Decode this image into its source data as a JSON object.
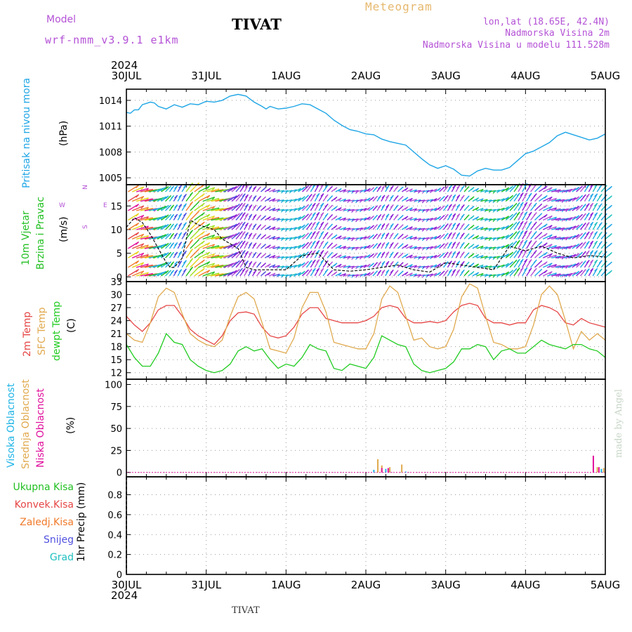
{
  "header": {
    "model_label": "Model",
    "model_name": "wrf-nmm_v3.9.1 e1km",
    "station": "TIVAT",
    "product": "Meteogram",
    "lonlat": "lon,lat (18.65E, 42.4N)",
    "elevation": "Nadmorska Visina 2m",
    "model_elevation": "Nadmorska Visina u modelu 111.528m",
    "footer_station": "TIVAT",
    "credit": "made by Angel"
  },
  "colors": {
    "model": "#b452d6",
    "title": "#000000",
    "product": "#e6b86e",
    "info": "#b452d6",
    "pressure": "#1fa6e6",
    "wind_label": "#22c022",
    "temp2m": "#e64646",
    "sfc": "#e0a94e",
    "dewpt": "#22cc22",
    "cloud_high": "#1fb4e6",
    "cloud_mid": "#e0a94e",
    "cloud_low": "#e0119c",
    "total_precip": "#22c022",
    "conv_precip": "#e64646",
    "frozen_precip": "#f07a2a",
    "snow": "#5050e0",
    "hail": "#22c0c0",
    "credit": "#c8d6c8"
  },
  "axis": {
    "year_top": "2024",
    "year_bottom": "2024",
    "date_ticks": [
      "30JUL",
      "31JUL",
      "1AUG",
      "2AUG",
      "3AUG",
      "4AUG",
      "5AUG"
    ]
  },
  "chart_data": [
    {
      "type": "line",
      "panel": "pressure",
      "ylabel": [
        "Pritisak na nivou mora",
        "(hPa)"
      ],
      "yticks": [
        1005,
        1008,
        1011,
        1014
      ],
      "ylim": [
        1004.2,
        1015.3
      ],
      "x_days": [
        0.0,
        0.05,
        0.1,
        0.15,
        0.2,
        0.3,
        0.35,
        0.4,
        0.5,
        0.6,
        0.7,
        0.8,
        0.9,
        1.0,
        1.1,
        1.2,
        1.3,
        1.4,
        1.5,
        1.6,
        1.7,
        1.75,
        1.8,
        1.9,
        2.0,
        2.1,
        2.2,
        2.3,
        2.4,
        2.5,
        2.6,
        2.7,
        2.8,
        2.9,
        3.0,
        3.1,
        3.2,
        3.3,
        3.4,
        3.5,
        3.6,
        3.7,
        3.8,
        3.9,
        4.0,
        4.1,
        4.2,
        4.3,
        4.4,
        4.5,
        4.6,
        4.7,
        4.8,
        4.9,
        5.0,
        5.1,
        5.2,
        5.3,
        5.4,
        5.5,
        5.6,
        5.7,
        5.8,
        5.9,
        6.0
      ],
      "y_hpa": [
        1012.6,
        1012.5,
        1012.9,
        1012.9,
        1013.5,
        1013.8,
        1013.7,
        1013.3,
        1013.0,
        1013.5,
        1013.2,
        1013.6,
        1013.5,
        1013.9,
        1013.8,
        1014.0,
        1014.5,
        1014.7,
        1014.5,
        1013.8,
        1013.3,
        1013.0,
        1013.3,
        1013.0,
        1013.1,
        1013.3,
        1013.6,
        1013.5,
        1013.0,
        1012.5,
        1011.7,
        1011.1,
        1010.6,
        1010.4,
        1010.1,
        1010.0,
        1009.5,
        1009.2,
        1009.0,
        1008.8,
        1008.0,
        1007.2,
        1006.5,
        1006.1,
        1006.4,
        1006.0,
        1005.3,
        1005.2,
        1005.8,
        1006.1,
        1005.9,
        1005.9,
        1006.2,
        1007.0,
        1007.8,
        1008.1,
        1008.6,
        1009.1,
        1009.9,
        1010.3,
        1010.0,
        1009.7,
        1009.4,
        1009.6,
        1010.1
      ]
    },
    {
      "type": "line",
      "panel": "wind",
      "ylabel": [
        "10m Vjetar",
        "Brzina i Pravac",
        "(m/s)"
      ],
      "compass": [
        "N",
        "E",
        "S",
        "W"
      ],
      "yticks": [
        0,
        5,
        10,
        15
      ],
      "ylim": [
        -1,
        19.5
      ],
      "x_days": [
        0.0,
        0.1,
        0.2,
        0.3,
        0.4,
        0.5,
        0.55,
        0.6,
        0.7,
        0.8,
        0.9,
        1.0,
        1.1,
        1.2,
        1.3,
        1.4,
        1.5,
        1.6,
        1.8,
        2.0,
        2.2,
        2.4,
        2.6,
        2.8,
        3.0,
        3.2,
        3.4,
        3.6,
        3.8,
        4.0,
        4.2,
        4.4,
        4.6,
        4.8,
        5.0,
        5.2,
        5.4,
        5.6,
        5.8,
        6.0
      ],
      "y_ms": [
        10.5,
        12.5,
        11.5,
        9.0,
        6.0,
        3.0,
        2.0,
        2.0,
        4.0,
        12.0,
        11.0,
        10.5,
        10.0,
        8.0,
        7.0,
        6.0,
        2.0,
        1.5,
        1.5,
        1.5,
        4.5,
        5.0,
        1.5,
        1.2,
        1.5,
        2.0,
        2.5,
        1.5,
        1.0,
        3.0,
        2.5,
        2.0,
        1.5,
        6.5,
        5.5,
        6.5,
        5.0,
        4.0,
        4.5,
        4.2
      ]
    },
    {
      "type": "line",
      "panel": "temperature",
      "ylabel": [
        "2m Temp",
        "SFC Temp",
        "dewpt Temp",
        "(C)"
      ],
      "yticks": [
        12,
        15,
        18,
        21,
        24,
        27,
        30,
        33
      ],
      "ylim": [
        10.5,
        33
      ],
      "x_days": [
        0.0,
        0.1,
        0.2,
        0.3,
        0.4,
        0.5,
        0.6,
        0.7,
        0.8,
        0.9,
        1.0,
        1.1,
        1.2,
        1.3,
        1.4,
        1.5,
        1.6,
        1.7,
        1.8,
        1.9,
        2.0,
        2.1,
        2.2,
        2.3,
        2.4,
        2.5,
        2.6,
        2.7,
        2.8,
        2.9,
        3.0,
        3.1,
        3.2,
        3.3,
        3.4,
        3.5,
        3.6,
        3.7,
        3.8,
        3.9,
        4.0,
        4.1,
        4.2,
        4.3,
        4.4,
        4.5,
        4.6,
        4.7,
        4.8,
        4.9,
        5.0,
        5.1,
        5.2,
        5.3,
        5.4,
        5.5,
        5.6,
        5.7,
        5.8,
        5.9,
        6.0
      ],
      "series": [
        {
          "name": "2m Temp",
          "values": [
            25.0,
            23.0,
            21.5,
            23.5,
            26.5,
            27.5,
            27.5,
            25.0,
            22.0,
            20.5,
            19.5,
            18.5,
            20.5,
            24.0,
            25.8,
            26.0,
            25.5,
            22.5,
            20.5,
            20.0,
            20.5,
            22.5,
            25.5,
            27.0,
            27.0,
            24.5,
            24.0,
            23.5,
            23.5,
            23.5,
            24.0,
            25.0,
            27.0,
            27.5,
            27.0,
            24.5,
            23.5,
            23.5,
            23.8,
            23.5,
            24.0,
            26.0,
            27.5,
            28.0,
            27.5,
            24.5,
            23.5,
            23.5,
            23.0,
            23.5,
            23.5,
            26.5,
            27.5,
            27.0,
            26.0,
            23.5,
            23.0,
            24.5,
            23.5,
            23.0,
            22.5
          ]
        },
        {
          "name": "SFC Temp",
          "values": [
            21.0,
            19.5,
            19.0,
            23.5,
            29.5,
            31.5,
            30.5,
            25.5,
            21.0,
            19.5,
            18.5,
            18.0,
            19.5,
            25.0,
            29.5,
            30.5,
            29.0,
            23.5,
            17.5,
            17.0,
            16.5,
            20.0,
            27.0,
            30.5,
            30.5,
            26.0,
            19.0,
            18.5,
            18.0,
            17.5,
            17.5,
            21.0,
            29.0,
            32.0,
            30.5,
            25.0,
            19.5,
            20.0,
            18.0,
            17.5,
            18.0,
            22.0,
            29.5,
            32.5,
            31.5,
            25.0,
            19.0,
            18.5,
            17.5,
            17.5,
            18.0,
            23.0,
            30.0,
            32.0,
            30.0,
            24.0,
            17.5,
            21.5,
            19.5,
            21.0,
            19.5
          ]
        },
        {
          "name": "dewpt Temp",
          "values": [
            18.5,
            15.5,
            13.5,
            13.5,
            16.5,
            21.0,
            19.0,
            18.5,
            15.0,
            13.5,
            12.5,
            12.0,
            12.5,
            14.0,
            17.0,
            18.0,
            17.0,
            17.5,
            15.0,
            13.0,
            14.0,
            13.5,
            15.5,
            18.5,
            17.5,
            17.0,
            13.0,
            12.5,
            14.0,
            13.5,
            13.0,
            15.5,
            20.5,
            19.5,
            18.5,
            18.0,
            14.0,
            12.5,
            12.0,
            12.5,
            13.0,
            14.5,
            17.5,
            17.5,
            18.5,
            18.0,
            15.0,
            17.0,
            17.5,
            16.5,
            16.5,
            18.0,
            19.5,
            18.5,
            18.0,
            17.5,
            18.5,
            18.5,
            17.5,
            17.0,
            15.5
          ]
        }
      ]
    },
    {
      "type": "bar",
      "panel": "cloud",
      "ylabel": [
        "Visoka Oblacnost",
        "Srednja Oblacnost",
        "Niska Oblacnost",
        "(%)"
      ],
      "yticks": [
        0,
        25,
        50,
        75,
        100
      ],
      "ylim": [
        -5,
        106
      ],
      "series": [
        {
          "name": "Visoka Oblacnost",
          "x_days": [
            3.1,
            3.25,
            3.3,
            3.5,
            5.95
          ],
          "values": [
            3,
            4,
            3,
            1,
            4
          ]
        },
        {
          "name": "Srednja Oblacnost",
          "x_days": [
            3.15,
            3.2,
            3.3,
            3.45,
            5.9,
            5.98
          ],
          "values": [
            15,
            8,
            6,
            9,
            6,
            5
          ]
        },
        {
          "name": "Niska Oblacnost",
          "x_days": [
            3.2,
            3.28,
            5.85,
            5.92
          ],
          "values": [
            5,
            5,
            19,
            6
          ]
        }
      ]
    },
    {
      "type": "bar",
      "panel": "precip",
      "ylabel": [
        "1hr Precip (mm)"
      ],
      "legend": [
        "Ukupna Kisa",
        "Konvek.Kisa",
        "Zaledj.Kisa",
        "Snijeg",
        "Grad"
      ],
      "yticks": [
        0,
        0.2,
        0.4,
        0.6,
        0.8
      ],
      "ylim": [
        0,
        0.98
      ],
      "values": []
    }
  ]
}
